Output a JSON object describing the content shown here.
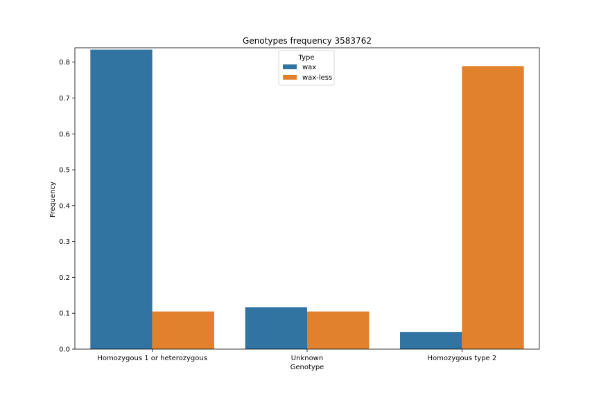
{
  "chart_data": {
    "type": "bar",
    "title": "Genotypes frequency 3583762",
    "xlabel": "Genotype",
    "ylabel": "Frequency",
    "categories": [
      "Homozygous 1 or heterozygous",
      "Unknown",
      "Homozygous type 2"
    ],
    "series": [
      {
        "name": "wax",
        "color": "#3274a1",
        "values": [
          0.835,
          0.117,
          0.048
        ]
      },
      {
        "name": "wax-less",
        "color": "#e1812c",
        "values": [
          0.105,
          0.105,
          0.789
        ]
      }
    ],
    "ylim": [
      0,
      0.84
    ],
    "yticks": [
      "0.0",
      "0.1",
      "0.2",
      "0.3",
      "0.4",
      "0.5",
      "0.6",
      "0.7",
      "0.8"
    ],
    "legend": {
      "title": "Type",
      "placement": "top-center"
    },
    "grid": false
  }
}
